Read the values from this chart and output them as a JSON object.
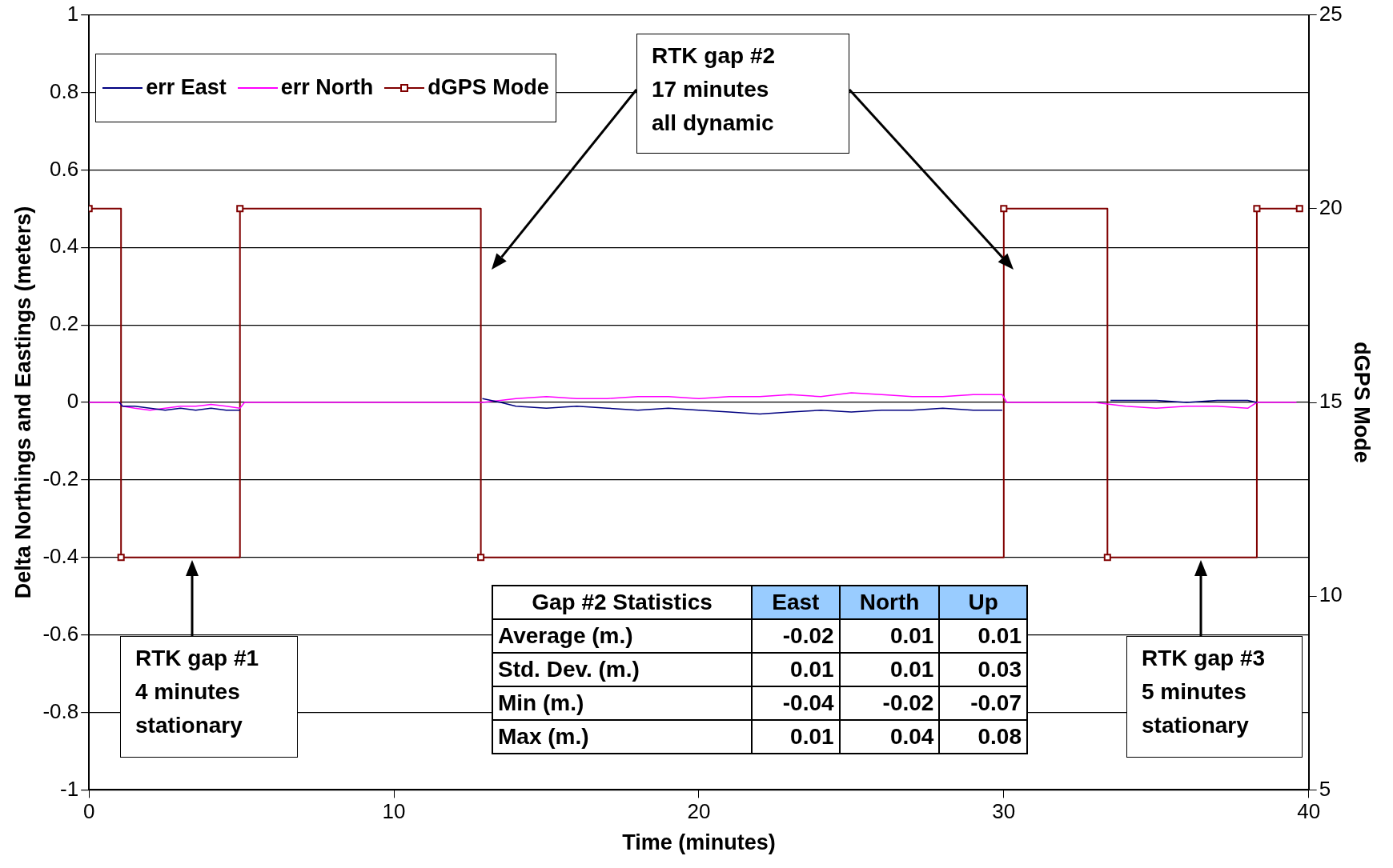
{
  "chart_data": {
    "type": "line",
    "xlabel": "Time (minutes)",
    "ylabel": "Delta Northings and Eastings (meters)",
    "y2label": "dGPS Mode",
    "x": [
      0,
      1,
      1.1,
      1.5,
      2,
      2.5,
      3,
      3.5,
      4,
      4.5,
      4.95,
      5.1,
      8,
      12,
      12.9,
      13.5,
      14,
      15,
      16,
      17,
      18,
      19,
      20,
      21,
      22,
      23,
      24,
      25,
      26,
      27,
      28,
      29,
      29.95,
      30.1,
      33,
      33.5,
      34,
      35,
      36,
      37,
      38,
      38.3,
      39.6
    ],
    "series": [
      {
        "name": "err East",
        "color": "#000080",
        "values": [
          null,
          0,
          -0.01,
          -0.01,
          -0.015,
          -0.02,
          -0.015,
          -0.02,
          -0.015,
          -0.02,
          -0.02,
          null,
          null,
          null,
          0.01,
          0,
          -0.01,
          -0.015,
          -0.01,
          -0.015,
          -0.02,
          -0.015,
          -0.02,
          -0.025,
          -0.03,
          -0.025,
          -0.02,
          -0.025,
          -0.02,
          -0.02,
          -0.015,
          -0.02,
          -0.02,
          null,
          null,
          0.005,
          0.005,
          0.005,
          0,
          0.005,
          0.005,
          0,
          null
        ]
      },
      {
        "name": "err North",
        "color": "#ff00ff",
        "values": [
          0,
          0,
          -0.01,
          -0.015,
          -0.02,
          -0.015,
          -0.01,
          -0.01,
          -0.005,
          -0.01,
          -0.015,
          0,
          0,
          0,
          0,
          0.005,
          0.01,
          0.015,
          0.01,
          0.01,
          0.015,
          0.015,
          0.01,
          0.015,
          0.015,
          0.02,
          0.015,
          0.025,
          0.02,
          0.015,
          0.015,
          0.02,
          0.02,
          0,
          0,
          -0.005,
          -0.01,
          -0.015,
          -0.01,
          -0.01,
          -0.015,
          0,
          0
        ]
      },
      {
        "name": "dGPS Mode",
        "type": "step",
        "axis": "y2",
        "marker": "square",
        "color": "#800000",
        "x": [
          0,
          1.05,
          4.95,
          12.85,
          30,
          33.4,
          38.3,
          39.7
        ],
        "values": [
          20,
          11,
          20,
          11,
          20,
          11,
          20,
          20
        ]
      }
    ],
    "xlim": [
      0,
      40
    ],
    "xticks": [
      0,
      10,
      20,
      30,
      40
    ],
    "ylim": [
      -1,
      1
    ],
    "yticks": [
      -1,
      -0.8,
      -0.6,
      -0.4,
      -0.2,
      0,
      0.2,
      0.4,
      0.6,
      0.8,
      1
    ],
    "y2lim": [
      5,
      25
    ],
    "y2ticks": [
      5,
      10,
      15,
      20,
      25
    ],
    "grid": "y",
    "legend": "top left",
    "line_style": "solid",
    "annotations": [
      "RTK gap #1\n4 minutes\nstationary",
      "RTK gap #2\n17 minutes\nall dynamic",
      "RTK gap #3\n5 minutes\nstationary",
      "Gap #2 Statistics",
      "East",
      "North",
      "Up",
      "Average (m.)",
      "-0.02",
      "0.01",
      "0.01",
      "Std. Dev. (m.)",
      "0.01",
      "0.01",
      "0.03",
      "Min (m.)",
      "-0.04",
      "-0.02",
      "-0.07",
      "Max (m.)",
      "0.01",
      "0.04",
      "0.08"
    ]
  }
}
